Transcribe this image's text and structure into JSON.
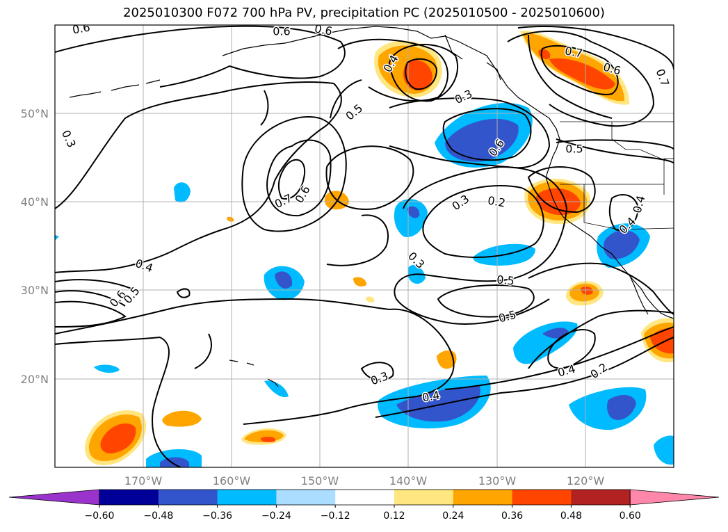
{
  "title": "2025010300 F072 700 hPa PV, precipitation PC (2025010500 - 2025010600)",
  "map": {
    "lon_range": [
      -180,
      -110
    ],
    "lat_range": [
      10,
      60
    ],
    "lon_ticks": [
      "170°W",
      "160°W",
      "150°W",
      "140°W",
      "130°W",
      "120°W"
    ],
    "lat_ticks": [
      "20°N",
      "30°N",
      "40°N",
      "50°N"
    ],
    "grid": true
  },
  "contour_labels": [
    "0.6",
    "0.6",
    "0.6",
    "0.4",
    "0.3",
    "0.5",
    "0.6",
    "0.5",
    "0.7",
    "0.6",
    "0.7",
    "0.6",
    "0.7",
    "0.4",
    "0.3",
    "0.2",
    "0.4",
    "0.3",
    "0.4",
    "0.5",
    "0.6",
    "0.5",
    "0.5",
    "0.3",
    "0.3",
    "0.4",
    "0.2",
    "0.4"
  ],
  "colorbar": {
    "ticks": [
      "−0.60",
      "−0.48",
      "−0.36",
      "−0.24",
      "−0.12",
      "0.12",
      "0.24",
      "0.36",
      "0.48",
      "0.60"
    ],
    "colors": [
      "#9933cc",
      "#000099",
      "#3355cc",
      "#00bbff",
      "#aaddff",
      "#ffffff",
      "#ffe680",
      "#ffa500",
      "#ff4500",
      "#b22222",
      "#ff88aa"
    ]
  }
}
